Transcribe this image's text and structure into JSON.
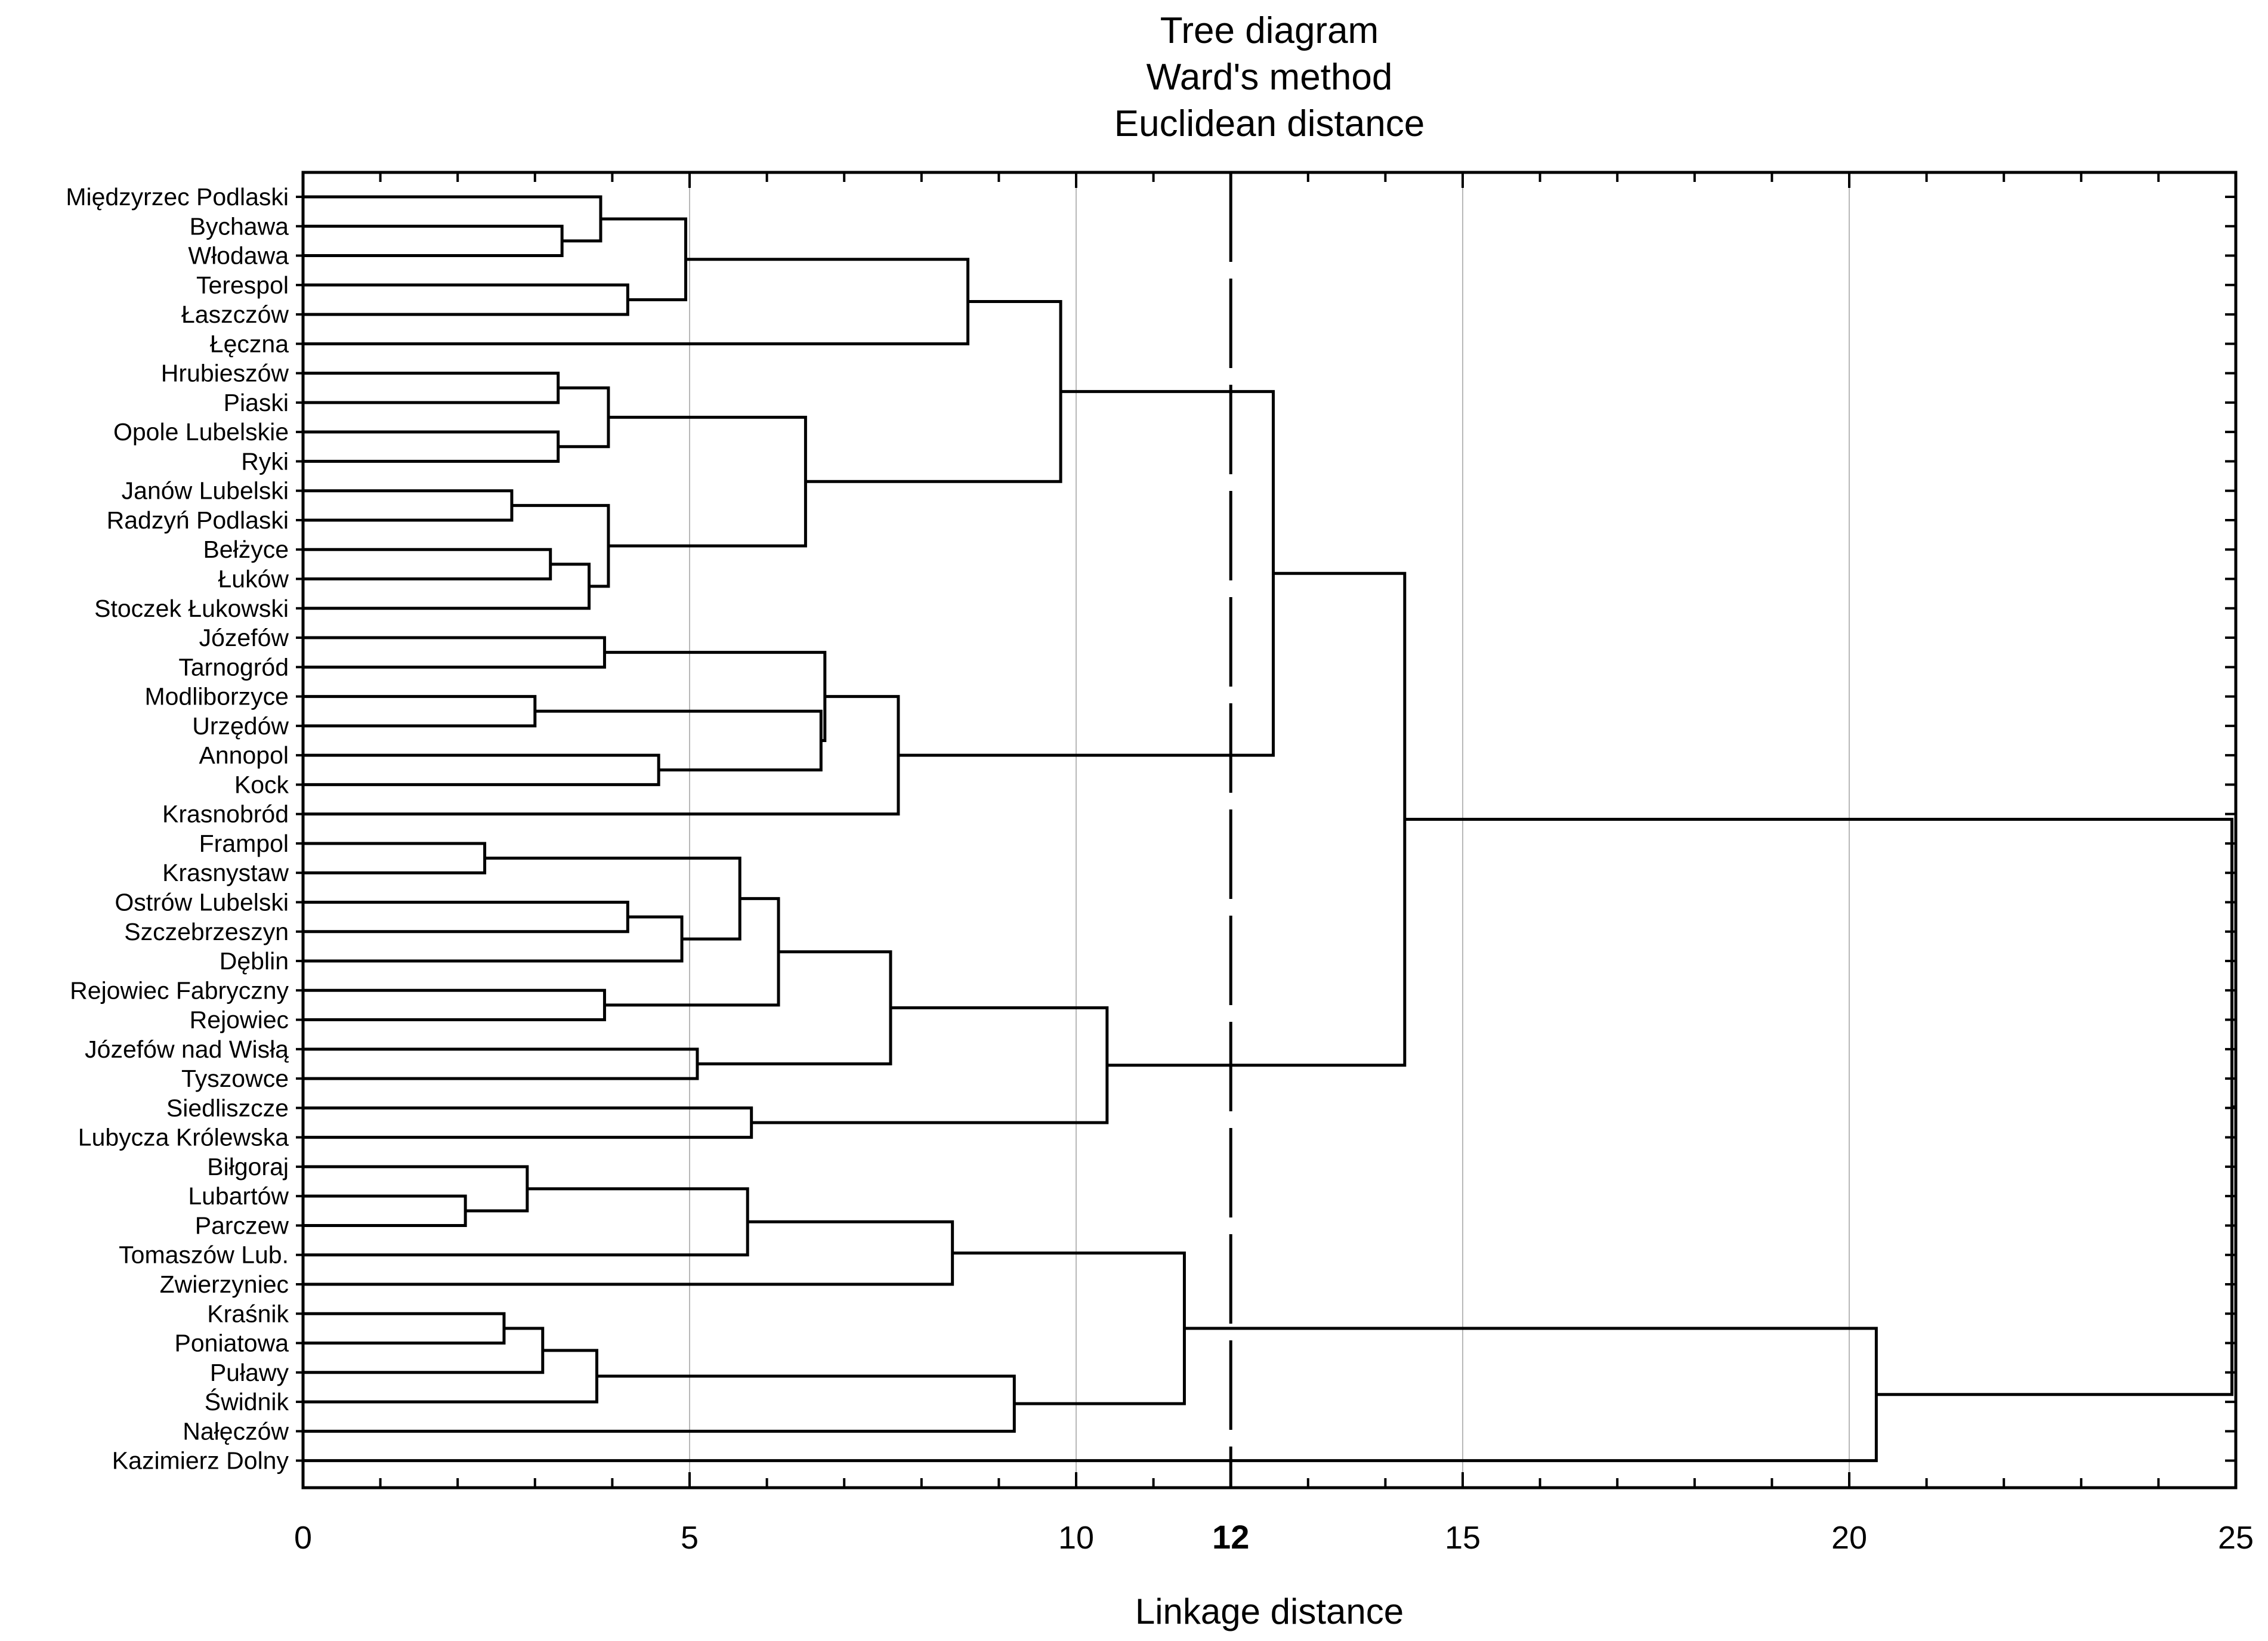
{
  "chart_data": {
    "type": "dendrogram",
    "title": [
      "Tree diagram",
      "Ward's method",
      "Euclidean distance"
    ],
    "xlabel": "Linkage distance",
    "xlim": [
      0,
      25
    ],
    "xticks": [
      "0",
      "5",
      "10",
      "12",
      "15",
      "20",
      "25"
    ],
    "grid": true,
    "cutoff": {
      "value": 12,
      "label": "12"
    },
    "leaves": [
      "Międzyrzec Podlaski",
      "Bychawa",
      "Włodawa",
      "Terespol",
      "Łaszczów",
      "Łęczna",
      "Hrubieszów",
      "Piaski",
      "Opole Lubelskie",
      "Ryki",
      "Janów Lubelski",
      "Radzyń Podlaski",
      "Bełżyce",
      "Łuków",
      "Stoczek Łukowski",
      "Józefów",
      "Tarnogród",
      "Modliborzyce",
      "Urzędów",
      "Annopol",
      "Kock",
      "Krasnobród",
      "Frampol",
      "Krasnystaw",
      "Ostrów Lubelski",
      "Szczebrzeszyn",
      "Dęblin",
      "Rejowiec Fabryczny",
      "Rejowiec",
      "Józefów nad Wisłą",
      "Tyszowce",
      "Siedliszcze",
      "Lubycza Królewska",
      "Biłgoraj",
      "Lubartów",
      "Parczew",
      "Tomaszów Lub.",
      "Zwierzyniec",
      "Kraśnik",
      "Poniatowa",
      "Puławy",
      "Świdnik",
      "Nałęczów",
      "Kazimierz Dolny"
    ],
    "merges": [
      {
        "id": "c1",
        "children": [
          1,
          2
        ],
        "height": 3.35
      },
      {
        "id": "c2",
        "children": [
          0,
          "c1"
        ],
        "height": 3.85
      },
      {
        "id": "c3",
        "children": [
          3,
          4
        ],
        "height": 4.2
      },
      {
        "id": "c4",
        "children": [
          "c2",
          "c3"
        ],
        "height": 4.95
      },
      {
        "id": "c5",
        "children": [
          "c4",
          5
        ],
        "height": 8.6
      },
      {
        "id": "c6",
        "children": [
          6,
          7
        ],
        "height": 3.3
      },
      {
        "id": "c7",
        "children": [
          8,
          9
        ],
        "height": 3.3
      },
      {
        "id": "c8",
        "children": [
          "c6",
          "c7"
        ],
        "height": 3.95
      },
      {
        "id": "c9",
        "children": [
          10,
          11
        ],
        "height": 2.7
      },
      {
        "id": "c10",
        "children": [
          12,
          13
        ],
        "height": 3.2
      },
      {
        "id": "c11",
        "children": [
          "c10",
          14
        ],
        "height": 3.7
      },
      {
        "id": "c12",
        "children": [
          "c9",
          "c11"
        ],
        "height": 3.95
      },
      {
        "id": "c13",
        "children": [
          "c8",
          "c12"
        ],
        "height": 6.5
      },
      {
        "id": "c14",
        "children": [
          "c5",
          "c13"
        ],
        "height": 9.8
      },
      {
        "id": "c15",
        "children": [
          15,
          16
        ],
        "height": 3.9
      },
      {
        "id": "c16",
        "children": [
          17,
          18
        ],
        "height": 3.0
      },
      {
        "id": "c17",
        "children": [
          19,
          20
        ],
        "height": 4.6
      },
      {
        "id": "c18",
        "children": [
          "c16",
          "c17"
        ],
        "height": 6.7
      },
      {
        "id": "c19",
        "children": [
          "c15",
          "c18"
        ],
        "height": 6.75
      },
      {
        "id": "c20",
        "children": [
          "c19",
          21
        ],
        "height": 7.7
      },
      {
        "id": "c21",
        "children": [
          "c14",
          "c20"
        ],
        "height": 12.55
      },
      {
        "id": "c22",
        "children": [
          22,
          23
        ],
        "height": 2.35
      },
      {
        "id": "c23",
        "children": [
          24,
          25
        ],
        "height": 4.2
      },
      {
        "id": "c24",
        "children": [
          "c23",
          26
        ],
        "height": 4.9
      },
      {
        "id": "c25",
        "children": [
          "c22",
          "c24"
        ],
        "height": 5.65
      },
      {
        "id": "c26",
        "children": [
          27,
          28
        ],
        "height": 3.9
      },
      {
        "id": "c27",
        "children": [
          "c25",
          "c26"
        ],
        "height": 6.15
      },
      {
        "id": "c28",
        "children": [
          29,
          30
        ],
        "height": 5.1
      },
      {
        "id": "c29",
        "children": [
          "c27",
          "c28"
        ],
        "height": 7.6
      },
      {
        "id": "c30",
        "children": [
          31,
          32
        ],
        "height": 5.8
      },
      {
        "id": "c31",
        "children": [
          "c29",
          "c30"
        ],
        "height": 10.4
      },
      {
        "id": "c32",
        "children": [
          "c21",
          "c31"
        ],
        "height": 14.25
      },
      {
        "id": "c33",
        "children": [
          34,
          35
        ],
        "height": 2.1
      },
      {
        "id": "c34",
        "children": [
          33,
          "c33"
        ],
        "height": 2.9
      },
      {
        "id": "c35",
        "children": [
          "c34",
          36
        ],
        "height": 5.75
      },
      {
        "id": "c36",
        "children": [
          "c35",
          37
        ],
        "height": 8.4
      },
      {
        "id": "c37",
        "children": [
          38,
          39
        ],
        "height": 2.6
      },
      {
        "id": "c38",
        "children": [
          "c37",
          40
        ],
        "height": 3.1
      },
      {
        "id": "c39",
        "children": [
          "c38",
          41
        ],
        "height": 3.8
      },
      {
        "id": "c40",
        "children": [
          "c39",
          42
        ],
        "height": 9.2
      },
      {
        "id": "c41",
        "children": [
          "c36",
          "c40"
        ],
        "height": 11.4
      },
      {
        "id": "c42",
        "children": [
          "c41",
          43
        ],
        "height": 20.35
      },
      {
        "id": "c43",
        "children": [
          "c32",
          "c42"
        ],
        "height": 24.95
      }
    ]
  }
}
